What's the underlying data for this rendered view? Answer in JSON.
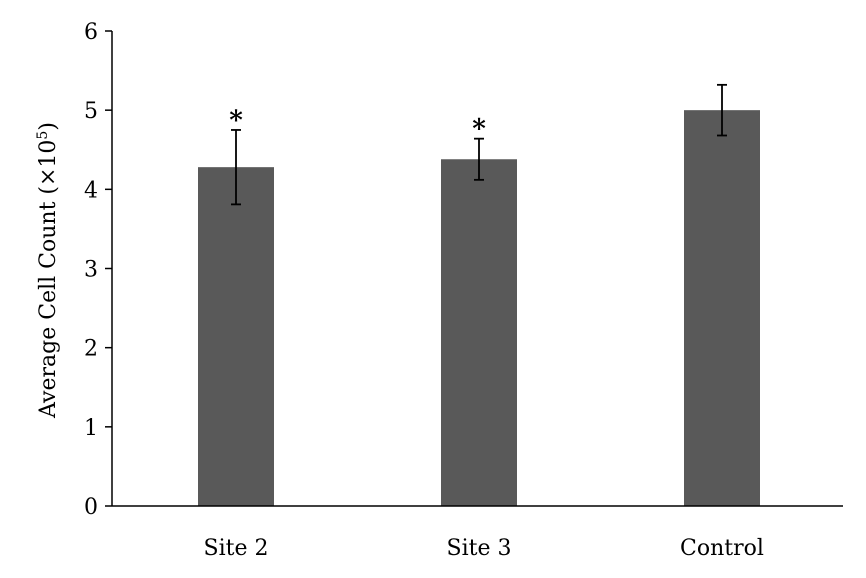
{
  "chart_data": {
    "type": "bar",
    "title": "",
    "xlabel": "",
    "ylabel": "Average Cell Count (×10",
    "ylabel_superscript": "5",
    "ylabel_suffix": ")",
    "categories": [
      "Site 2",
      "Site 3",
      "Control"
    ],
    "values": [
      4.28,
      4.38,
      5.0
    ],
    "errors": [
      0.47,
      0.26,
      0.32
    ],
    "significance": [
      "*",
      "*",
      ""
    ],
    "ylim": [
      0,
      6
    ],
    "yticks": [
      0,
      1,
      2,
      3,
      4,
      5,
      6
    ],
    "bar_color": "#595959",
    "grid": false,
    "legend": "none"
  }
}
